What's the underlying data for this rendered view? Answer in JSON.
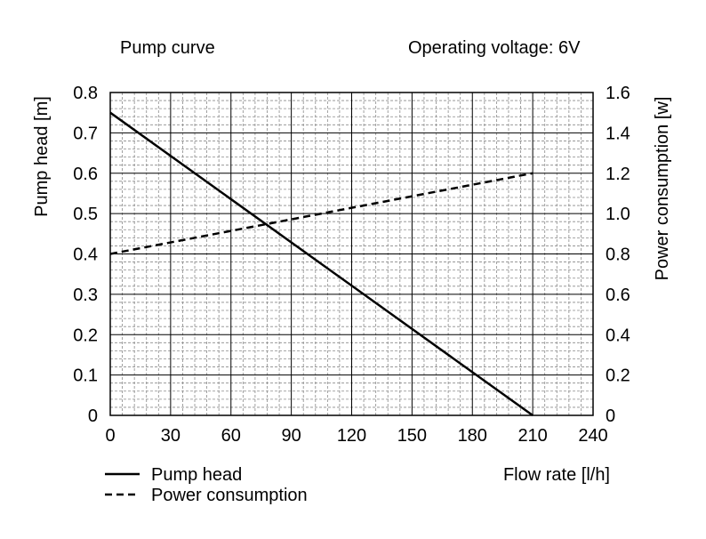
{
  "chart_data": {
    "type": "line",
    "title": "Pump curve",
    "subtitle": "Operating voltage: 6V",
    "xlabel": "Flow rate [l/h]",
    "ylabel": "Pump head [m]",
    "y2label": "Power consumption [w]",
    "xlim": [
      0,
      240
    ],
    "ylim": [
      0,
      0.8
    ],
    "y2lim": [
      0,
      1.6
    ],
    "x_ticks": [
      "0",
      "30",
      "60",
      "90",
      "120",
      "150",
      "180",
      "210",
      "240"
    ],
    "y_ticks": [
      "0",
      "0.1",
      "0.2",
      "0.3",
      "0.4",
      "0.5",
      "0.6",
      "0.7",
      "0.8"
    ],
    "y2_ticks": [
      "0",
      "0.2",
      "0.4",
      "0.6",
      "0.8",
      "1.0",
      "1.2",
      "1.4",
      "1.6"
    ],
    "grid": true,
    "legend_position": "bottom-left",
    "series": [
      {
        "name": "Pump head",
        "axis": "left",
        "style": "solid",
        "color": "#000000",
        "x": [
          0,
          210
        ],
        "y": [
          0.75,
          0
        ]
      },
      {
        "name": "Power consumption",
        "axis": "right",
        "style": "dashed",
        "color": "#000000",
        "x": [
          0,
          210
        ],
        "y": [
          0.8,
          1.2
        ]
      }
    ]
  }
}
